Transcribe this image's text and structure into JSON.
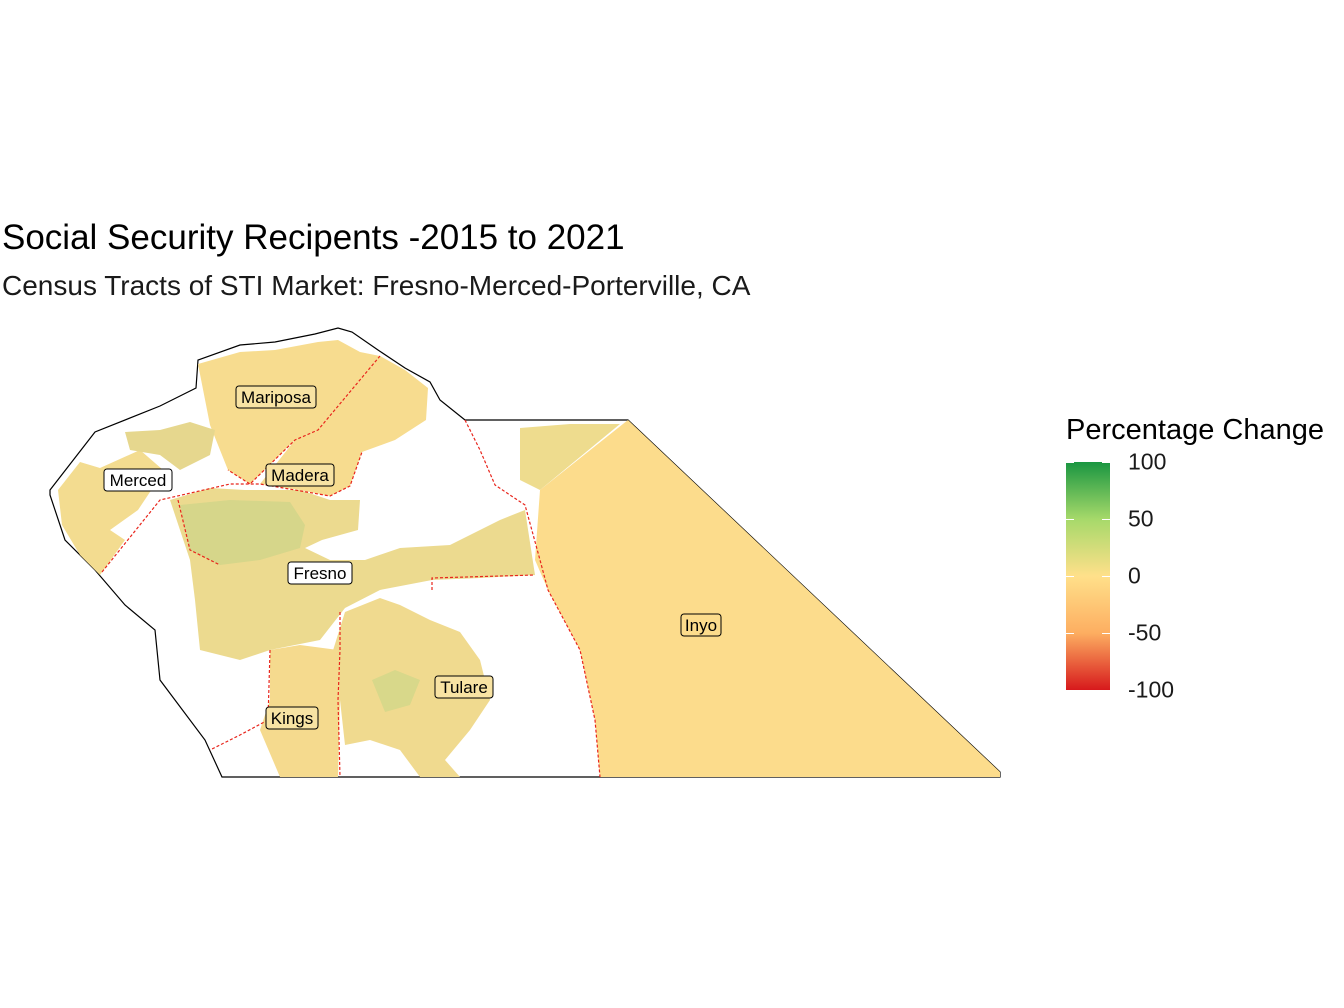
{
  "title": "Social Security Recipents -2015 to 2021",
  "subtitle": "Census Tracts of STI Market: Fresno-Merced-Porterville, CA",
  "colors": {
    "high": "#1a9641",
    "mid_high": "#a6d96a",
    "zero": "#ffe08a",
    "mid_low": "#fdae61",
    "low": "#d7191c",
    "tract_fill": "#f7dc8f",
    "tract_fill_green": "#d8d88a",
    "county_border": "#e8251c",
    "outline": "#000000"
  },
  "legend": {
    "title": "Percentage Change",
    "breaks": [
      {
        "value": 100,
        "label": "100"
      },
      {
        "value": 50,
        "label": "50"
      },
      {
        "value": 0,
        "label": "0"
      },
      {
        "value": -50,
        "label": "-50"
      },
      {
        "value": -100,
        "label": "-100"
      }
    ],
    "range": [
      -100,
      100
    ]
  },
  "counties": [
    {
      "name": "Mariposa",
      "label": "Mariposa"
    },
    {
      "name": "Merced",
      "label": "Merced"
    },
    {
      "name": "Madera",
      "label": "Madera"
    },
    {
      "name": "Fresno",
      "label": "Fresno"
    },
    {
      "name": "Inyo",
      "label": "Inyo"
    },
    {
      "name": "Tulare",
      "label": "Tulare"
    },
    {
      "name": "Kings",
      "label": "Kings"
    }
  ]
}
